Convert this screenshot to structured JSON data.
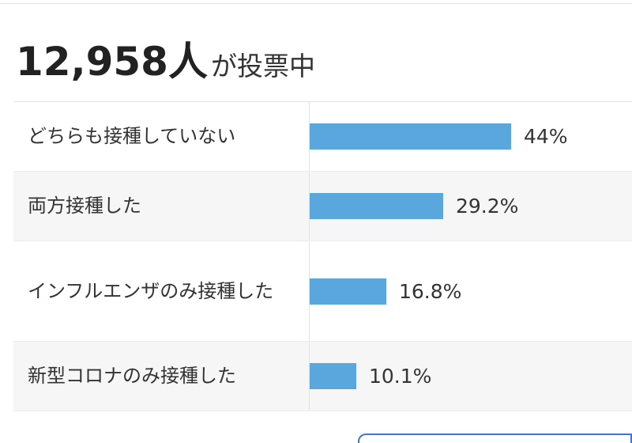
{
  "header": {
    "count": "12,958人",
    "suffix": "が投票中"
  },
  "chart_data": {
    "type": "bar",
    "orientation": "horizontal",
    "categories": [
      "どちらも接種していない",
      "両方接種した",
      "インフルエンザのみ接種した",
      "新型コロナのみ接種した"
    ],
    "values": [
      44,
      29.2,
      16.8,
      10.1
    ],
    "value_labels": [
      "44%",
      "29.2%",
      "16.8%",
      "10.1%"
    ],
    "unit": "%",
    "bar_color": "#5aa7de",
    "title": "",
    "xlabel": "",
    "ylabel": ""
  }
}
